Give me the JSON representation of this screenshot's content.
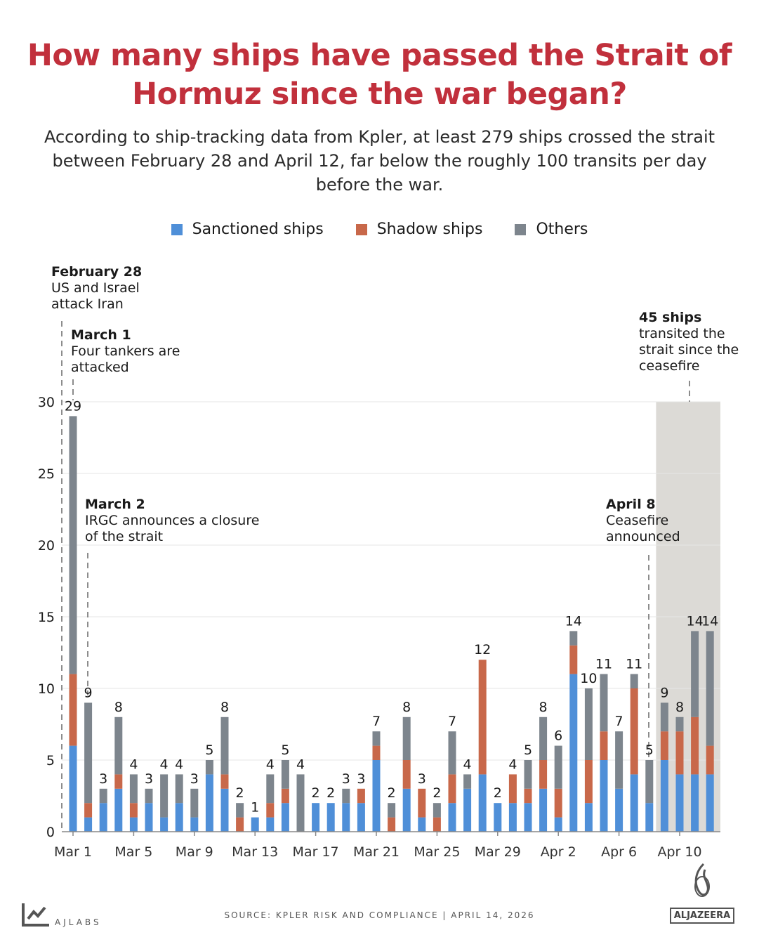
{
  "title": "How many ships have passed the Strait of Hormuz since the war began?",
  "subtitle": "According to ship-tracking data from Kpler, at least 279 ships crossed the strait between February 28 and April 12, far below the roughly 100 transits per day before the war.",
  "colors": {
    "title": "#c1303c",
    "sanctioned": "#4f8fd8",
    "shadow": "#c8684a",
    "others": "#7d858d",
    "ceasefire_shade": "#dcdad6"
  },
  "annotations": [
    {
      "date": "February 28",
      "text": "US and Israel attack Iran"
    },
    {
      "date": "March 1",
      "text": "Four tankers are attacked"
    },
    {
      "date": "March 2",
      "text": "IRGC announces a closure of the strait"
    },
    {
      "date": "April 8",
      "text": "Ceasefire announced"
    },
    {
      "date": "45 ships",
      "text": "transited the strait since the ceasefire"
    }
  ],
  "chart_data": {
    "type": "bar",
    "stacked": true,
    "title": "How many ships have passed the Strait of Hormuz since the war began?",
    "xlabel": "",
    "ylabel": "",
    "ylim": [
      0,
      30
    ],
    "yticks": [
      0,
      5,
      10,
      15,
      20,
      25,
      30
    ],
    "grid": true,
    "legend": "top-center",
    "x_tick_labels": [
      "Mar 1",
      "Mar 5",
      "Mar 9",
      "Mar 13",
      "Mar 17",
      "Mar 21",
      "Mar 25",
      "Mar 29",
      "Apr 2",
      "Apr 6",
      "Apr 10"
    ],
    "categories": [
      "Mar 1",
      "Mar 2",
      "Mar 3",
      "Mar 4",
      "Mar 5",
      "Mar 6",
      "Mar 7",
      "Mar 8",
      "Mar 9",
      "Mar 10",
      "Mar 11",
      "Mar 12",
      "Mar 13",
      "Mar 14",
      "Mar 15",
      "Mar 16",
      "Mar 17",
      "Mar 18",
      "Mar 19",
      "Mar 20",
      "Mar 21",
      "Mar 22",
      "Mar 23",
      "Mar 24",
      "Mar 25",
      "Mar 26",
      "Mar 27",
      "Mar 28",
      "Mar 29",
      "Mar 30",
      "Mar 31",
      "Apr 1",
      "Apr 2",
      "Apr 3",
      "Apr 4",
      "Apr 5",
      "Apr 6",
      "Apr 7",
      "Apr 8",
      "Apr 9",
      "Apr 10",
      "Apr 11",
      "Apr 12"
    ],
    "series": [
      {
        "name": "Sanctioned ships",
        "values": [
          6,
          1,
          2,
          3,
          1,
          2,
          1,
          2,
          1,
          4,
          3,
          0,
          1,
          1,
          2,
          0,
          2,
          2,
          2,
          2,
          5,
          0,
          3,
          1,
          0,
          2,
          3,
          4,
          2,
          2,
          2,
          3,
          1,
          11,
          2,
          5,
          3,
          4,
          2,
          5,
          4,
          4,
          4
        ]
      },
      {
        "name": "Shadow ships",
        "values": [
          5,
          1,
          0,
          1,
          1,
          0,
          0,
          0,
          0,
          0,
          1,
          1,
          0,
          1,
          1,
          0,
          0,
          0,
          0,
          1,
          1,
          1,
          2,
          2,
          1,
          2,
          0,
          8,
          0,
          2,
          1,
          2,
          2,
          2,
          3,
          2,
          0,
          6,
          0,
          2,
          3,
          4,
          2
        ]
      },
      {
        "name": "Others",
        "values": [
          18,
          7,
          1,
          4,
          2,
          1,
          3,
          2,
          2,
          1,
          4,
          1,
          0,
          2,
          2,
          4,
          0,
          0,
          1,
          0,
          1,
          1,
          3,
          0,
          1,
          3,
          1,
          0,
          0,
          0,
          2,
          3,
          3,
          1,
          5,
          4,
          4,
          1,
          3,
          2,
          1,
          6,
          8
        ]
      }
    ],
    "totals": [
      29,
      9,
      3,
      8,
      4,
      3,
      4,
      4,
      3,
      5,
      8,
      2,
      1,
      4,
      5,
      4,
      2,
      2,
      3,
      3,
      7,
      2,
      8,
      3,
      2,
      7,
      4,
      12,
      2,
      4,
      5,
      8,
      6,
      14,
      10,
      11,
      7,
      11,
      5,
      9,
      8,
      14,
      14
    ],
    "shaded_region": {
      "from": "Apr 9",
      "to": "Apr 12",
      "meaning": "since the ceasefire"
    }
  },
  "footer": {
    "source": "SOURCE:  KPLER RISK AND COMPLIANCE  |   APRIL 14, 2026",
    "ajlabs": "AJLABS",
    "logo": "ALJAZEERA"
  }
}
